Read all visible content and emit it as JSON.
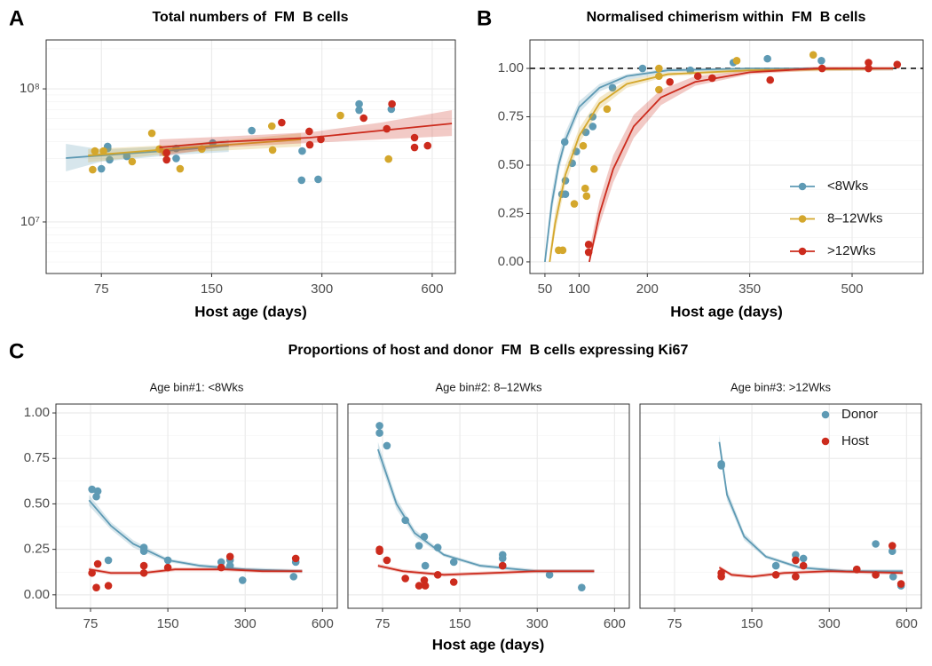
{
  "chart_data": [
    {
      "type": "scatter",
      "letter": "A",
      "title": "Total numbers of  FM  B cells",
      "x_label": "Host age (days)",
      "xscale": "log",
      "yscale": "log",
      "xlim": [
        53,
        694
      ],
      "ylim": [
        4100000,
        233000000
      ],
      "xticks": [
        75,
        150,
        300,
        600
      ],
      "yticks": [
        {
          "value": 10000000,
          "label": "10⁷"
        },
        {
          "value": 100000000,
          "label": "10⁸"
        }
      ],
      "yminor": [
        5000000,
        6000000,
        7000000,
        8000000,
        9000000,
        20000000,
        30000000,
        40000000,
        50000000,
        60000000,
        70000000,
        80000000,
        90000000,
        200000000
      ],
      "grid": true,
      "series": [
        {
          "color": "#5e9ab4",
          "x": [
            75,
            78,
            78,
            79,
            88,
            120,
            120,
            151,
            193,
            265,
            264,
            293,
            379,
            379,
            464
          ],
          "values": [
            25100000,
            36900000,
            35700000,
            29300000,
            31100000,
            35700000,
            30000000,
            39200000,
            48600000,
            34100000,
            20600000,
            20900000,
            77000000,
            69200000,
            70300000
          ],
          "fit_x": [
            60,
            75,
            121,
            167
          ],
          "fit": [
            30200000,
            31600000,
            34700000,
            37500000
          ],
          "fit_lower": [
            24000000,
            28400000,
            32000000,
            33600000
          ],
          "fit_upper": [
            38600000,
            35000000,
            37500000,
            41700000
          ]
        },
        {
          "color": "#d4a72c",
          "x": [
            72,
            71,
            76,
            91,
            103,
            108,
            112,
            123,
            141,
            219,
            220,
            337,
            456
          ],
          "values": [
            34100000,
            24700000,
            34100000,
            28400000,
            46400000,
            35300000,
            33100000,
            25100000,
            35300000,
            52500000,
            34700000,
            63100000,
            29700000
          ],
          "fit_x": [
            69,
            121,
            210,
            263
          ],
          "fit": [
            31600000,
            35700000,
            39800000,
            41700000
          ],
          "fit_lower": [
            28000000,
            33100000,
            35700000,
            36900000
          ],
          "fit_upper": [
            35300000,
            38000000,
            43700000,
            46400000
          ]
        },
        {
          "color": "#cc2b1d",
          "x": [
            113,
            113,
            233,
            277,
            278,
            298,
            390,
            451,
            466,
            537,
            537,
            583
          ],
          "values": [
            33100000,
            29300000,
            55800000,
            47900000,
            38000000,
            41700000,
            60300000,
            50100000,
            77000000,
            43000000,
            36300000,
            37400000
          ],
          "fit_x": [
            108,
            159,
            278,
            435,
            679
          ],
          "fit": [
            36300000,
            39800000,
            43000000,
            48600000,
            54900000
          ],
          "fit_lower": [
            31100000,
            36300000,
            39200000,
            41700000,
            44300000
          ],
          "fit_upper": [
            41700000,
            43700000,
            47200000,
            55800000,
            69200000
          ]
        }
      ]
    },
    {
      "type": "scatter",
      "letter": "B",
      "title": "Normalised chimerism within  FM  B cells",
      "x_label": "Host age (days)",
      "xlim": [
        28,
        604
      ],
      "ylim": [
        -0.06,
        1.147
      ],
      "xticks": [
        50,
        100,
        200,
        350,
        500
      ],
      "yticks": [
        {
          "value": 0,
          "label": "0.00"
        },
        {
          "value": 0.25,
          "label": "0.25"
        },
        {
          "value": 0.5,
          "label": "0.50"
        },
        {
          "value": 0.75,
          "label": "0.75"
        },
        {
          "value": 1,
          "label": "1.00"
        }
      ],
      "yminor": [
        0.125,
        0.375,
        0.625,
        0.875
      ],
      "grid": true,
      "hline": 1,
      "legend": "lower right",
      "series": [
        {
          "name": "<8Wks",
          "color": "#5e9ab4",
          "x": [
            79,
            80,
            75,
            80,
            90,
            96,
            110,
            120,
            120,
            149,
            193,
            263,
            326,
            376,
            455
          ],
          "values": [
            0.62,
            0.42,
            0.35,
            0.35,
            0.51,
            0.57,
            0.67,
            0.75,
            0.7,
            0.9,
            1.0,
            0.99,
            1.03,
            1.05,
            1.04
          ],
          "fit_x": [
            50,
            60,
            70,
            80,
            100,
            130,
            170,
            230,
            350,
            560
          ],
          "fit": [
            0,
            0.3,
            0.5,
            0.63,
            0.8,
            0.9,
            0.96,
            0.99,
            1,
            1
          ],
          "fit_lower": [
            0,
            0.25,
            0.46,
            0.6,
            0.77,
            0.88,
            0.94,
            0.98,
            0.99,
            0.99
          ],
          "fit_upper": [
            0.04,
            0.36,
            0.55,
            0.67,
            0.83,
            0.92,
            0.97,
            1.0,
            1.0,
            1.0
          ]
        },
        {
          "name": "8–12Wks",
          "color": "#d4a72c",
          "x": [
            70,
            76,
            93,
            106,
            109,
            111,
            122,
            141,
            217,
            217,
            217,
            331,
            443
          ],
          "values": [
            0.06,
            0.06,
            0.3,
            0.6,
            0.38,
            0.34,
            0.48,
            0.79,
            0.89,
            0.96,
            1.0,
            1.04,
            1.07
          ],
          "fit_x": [
            57,
            65,
            80,
            100,
            130,
            170,
            230,
            350,
            560
          ],
          "fit": [
            0,
            0.2,
            0.45,
            0.65,
            0.82,
            0.92,
            0.97,
            0.99,
            1
          ],
          "fit_lower": [
            0,
            0.15,
            0.4,
            0.61,
            0.79,
            0.9,
            0.96,
            0.98,
            0.99
          ],
          "fit_upper": [
            0.05,
            0.26,
            0.5,
            0.69,
            0.85,
            0.94,
            0.98,
            1.0,
            1.0
          ]
        },
        {
          "name": ">12Wks",
          "color": "#cc2b1d",
          "x": [
            114,
            114,
            233,
            274,
            295,
            380,
            456,
            524,
            524,
            566
          ],
          "values": [
            0.09,
            0.05,
            0.93,
            0.96,
            0.95,
            0.94,
            1.0,
            1.03,
            1.0,
            1.02
          ],
          "fit_x": [
            115,
            130,
            150,
            180,
            220,
            270,
            350,
            450,
            560
          ],
          "fit": [
            0,
            0.25,
            0.48,
            0.7,
            0.85,
            0.93,
            0.98,
            1,
            1
          ],
          "fit_lower": [
            0,
            0.19,
            0.41,
            0.64,
            0.81,
            0.91,
            0.97,
            0.99,
            0.99
          ],
          "fit_upper": [
            0.06,
            0.32,
            0.55,
            0.76,
            0.89,
            0.96,
            0.99,
            1.01,
            1.01
          ]
        }
      ]
    },
    {
      "type": "facet-scatter",
      "letter": "C",
      "title": "Proportions of host and donor  FM  B cells expressing Ki67",
      "x_label": "Host age (days)",
      "xscale": "log",
      "xlim": [
        55,
        685
      ],
      "ylim": [
        -0.074,
        1.049
      ],
      "xticks": [
        75,
        150,
        300,
        600
      ],
      "yticks": [
        {
          "value": 0,
          "label": "0.00"
        },
        {
          "value": 0.25,
          "label": "0.25"
        },
        {
          "value": 0.5,
          "label": "0.50"
        },
        {
          "value": 0.75,
          "label": "0.75"
        },
        {
          "value": 1,
          "label": "1.00"
        }
      ],
      "yminor": [
        0.125,
        0.375,
        0.625,
        0.875
      ],
      "grid": true,
      "legend": "upper right",
      "facets": [
        "Age bin#1: <8Wks",
        "Age bin#2: 8–12Wks",
        "Age bin#3: >12Wks"
      ],
      "series": [
        {
          "name": "Donor",
          "color": "#5e9ab4",
          "x": [
            [
              76,
              80,
              79,
              88,
              121,
              121,
              150,
              242,
              262,
              262,
              293,
              472,
              463
            ],
            [
              73,
              73,
              78,
              92,
              104,
              109,
              110,
              123,
              142,
              220,
              220,
              220,
              335,
              447
            ],
            [
              114,
              114,
              186,
              222,
              222,
              238,
              384,
              455,
              455,
              532,
              528,
              571
            ]
          ],
          "values": [
            [
              0.58,
              0.57,
              0.54,
              0.19,
              0.26,
              0.24,
              0.19,
              0.18,
              0.19,
              0.16,
              0.08,
              0.18,
              0.1
            ],
            [
              0.93,
              0.89,
              0.82,
              0.41,
              0.27,
              0.32,
              0.16,
              0.26,
              0.18,
              0.22,
              0.2,
              0.16,
              0.11,
              0.04
            ],
            [
              0.72,
              0.71,
              0.16,
              0.22,
              0.1,
              0.2,
              0.14,
              0.11,
              0.28,
              0.1,
              0.24,
              0.05
            ]
          ],
          "fit_x": [
            [
              74,
              90,
              110,
              150,
              200,
              300,
              500
            ],
            [
              72,
              85,
              100,
              130,
              180,
              300,
              500
            ],
            [
              112,
              120,
              140,
              170,
              230,
              350,
              580
            ]
          ],
          "fit": [
            [
              0.52,
              0.38,
              0.28,
              0.19,
              0.16,
              0.14,
              0.13
            ],
            [
              0.8,
              0.5,
              0.34,
              0.22,
              0.16,
              0.13,
              0.13
            ],
            [
              0.84,
              0.55,
              0.32,
              0.21,
              0.15,
              0.13,
              0.13
            ]
          ],
          "fit_lower": [
            [
              0.49,
              0.36,
              0.26,
              0.18,
              0.15,
              0.13,
              0.12
            ],
            [
              0.76,
              0.47,
              0.32,
              0.21,
              0.15,
              0.12,
              0.12
            ],
            [
              0.8,
              0.52,
              0.3,
              0.2,
              0.14,
              0.12,
              0.12
            ]
          ],
          "fit_upper": [
            [
              0.55,
              0.4,
              0.3,
              0.2,
              0.17,
              0.15,
              0.14
            ],
            [
              0.84,
              0.53,
              0.36,
              0.23,
              0.17,
              0.14,
              0.14
            ],
            [
              0.88,
              0.58,
              0.34,
              0.22,
              0.16,
              0.14,
              0.14
            ]
          ]
        },
        {
          "name": "Host",
          "color": "#cc2b1d",
          "x": [
            [
              76,
              79,
              80,
              88,
              121,
              121,
              150,
              242,
              262,
              472
            ],
            [
              73,
              73,
              78,
              92,
              104,
              109,
              110,
              123,
              142,
              220
            ],
            [
              114,
              114,
              186,
              222,
              222,
              238,
              384,
              455,
              528,
              571
            ]
          ],
          "values": [
            [
              0.12,
              0.04,
              0.17,
              0.05,
              0.16,
              0.12,
              0.15,
              0.15,
              0.21,
              0.2
            ],
            [
              0.25,
              0.24,
              0.19,
              0.09,
              0.05,
              0.08,
              0.05,
              0.11,
              0.07,
              0.16
            ],
            [
              0.12,
              0.1,
              0.11,
              0.19,
              0.1,
              0.16,
              0.14,
              0.11,
              0.27,
              0.06
            ]
          ],
          "fit_x": [
            [
              74,
              90,
              120,
              160,
              250,
              350,
              500
            ],
            [
              72,
              90,
              130,
              200,
              300,
              500
            ],
            [
              112,
              125,
              150,
              200,
              300,
              580
            ]
          ],
          "fit": [
            [
              0.14,
              0.12,
              0.12,
              0.14,
              0.14,
              0.13,
              0.13
            ],
            [
              0.16,
              0.13,
              0.11,
              0.12,
              0.13,
              0.13
            ],
            [
              0.15,
              0.11,
              0.1,
              0.12,
              0.13,
              0.12
            ]
          ],
          "fit_lower": [
            [
              0.13,
              0.11,
              0.11,
              0.13,
              0.13,
              0.12,
              0.12
            ],
            [
              0.15,
              0.12,
              0.1,
              0.11,
              0.12,
              0.12
            ],
            [
              0.14,
              0.1,
              0.09,
              0.11,
              0.12,
              0.11
            ]
          ],
          "fit_upper": [
            [
              0.15,
              0.13,
              0.13,
              0.15,
              0.15,
              0.14,
              0.14
            ],
            [
              0.17,
              0.14,
              0.12,
              0.13,
              0.14,
              0.14
            ],
            [
              0.16,
              0.12,
              0.11,
              0.13,
              0.14,
              0.13
            ]
          ]
        }
      ]
    }
  ]
}
